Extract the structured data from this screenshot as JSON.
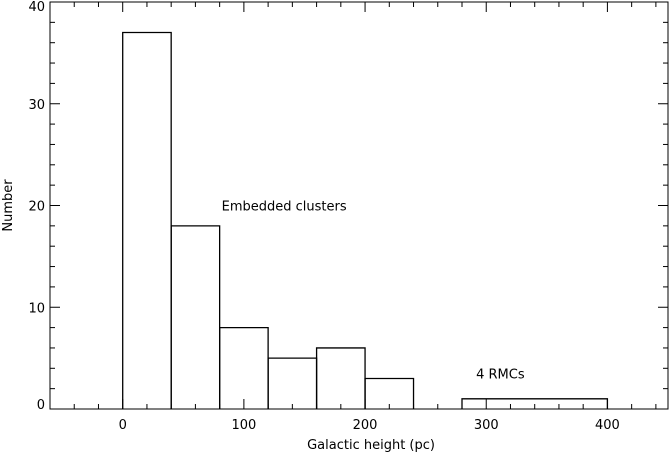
{
  "chart_data": {
    "type": "histogram",
    "xlabel": "Galactic height (pc)",
    "ylabel": "Number",
    "xlim": [
      -60,
      450
    ],
    "ylim": [
      0,
      40
    ],
    "xticks": [
      0,
      100,
      200,
      300,
      400
    ],
    "yticks": [
      0,
      10,
      20,
      30,
      40
    ],
    "xticks_labels": [
      "0",
      "100",
      "200",
      "300",
      "400"
    ],
    "yticks_labels": [
      "0",
      "10",
      "20",
      "30",
      "40"
    ],
    "x_minor_step": 20,
    "y_minor_step": 2,
    "grid": false,
    "series": [
      {
        "name": "Embedded clusters",
        "bin_edges": [
          0,
          40,
          80,
          120,
          160,
          200,
          240
        ],
        "counts": [
          37,
          18,
          8,
          5,
          6,
          3
        ]
      },
      {
        "name": "4 RMCs",
        "bin_edges": [
          280,
          400
        ],
        "counts": [
          1
        ]
      }
    ],
    "annotations": [
      {
        "text": "Embedded clusters",
        "x": 80,
        "y": 20
      },
      {
        "text": "4 RMCs",
        "x": 290,
        "y": 3.5
      }
    ],
    "colors": {
      "line": "#000000",
      "background": "#ffffff"
    }
  }
}
